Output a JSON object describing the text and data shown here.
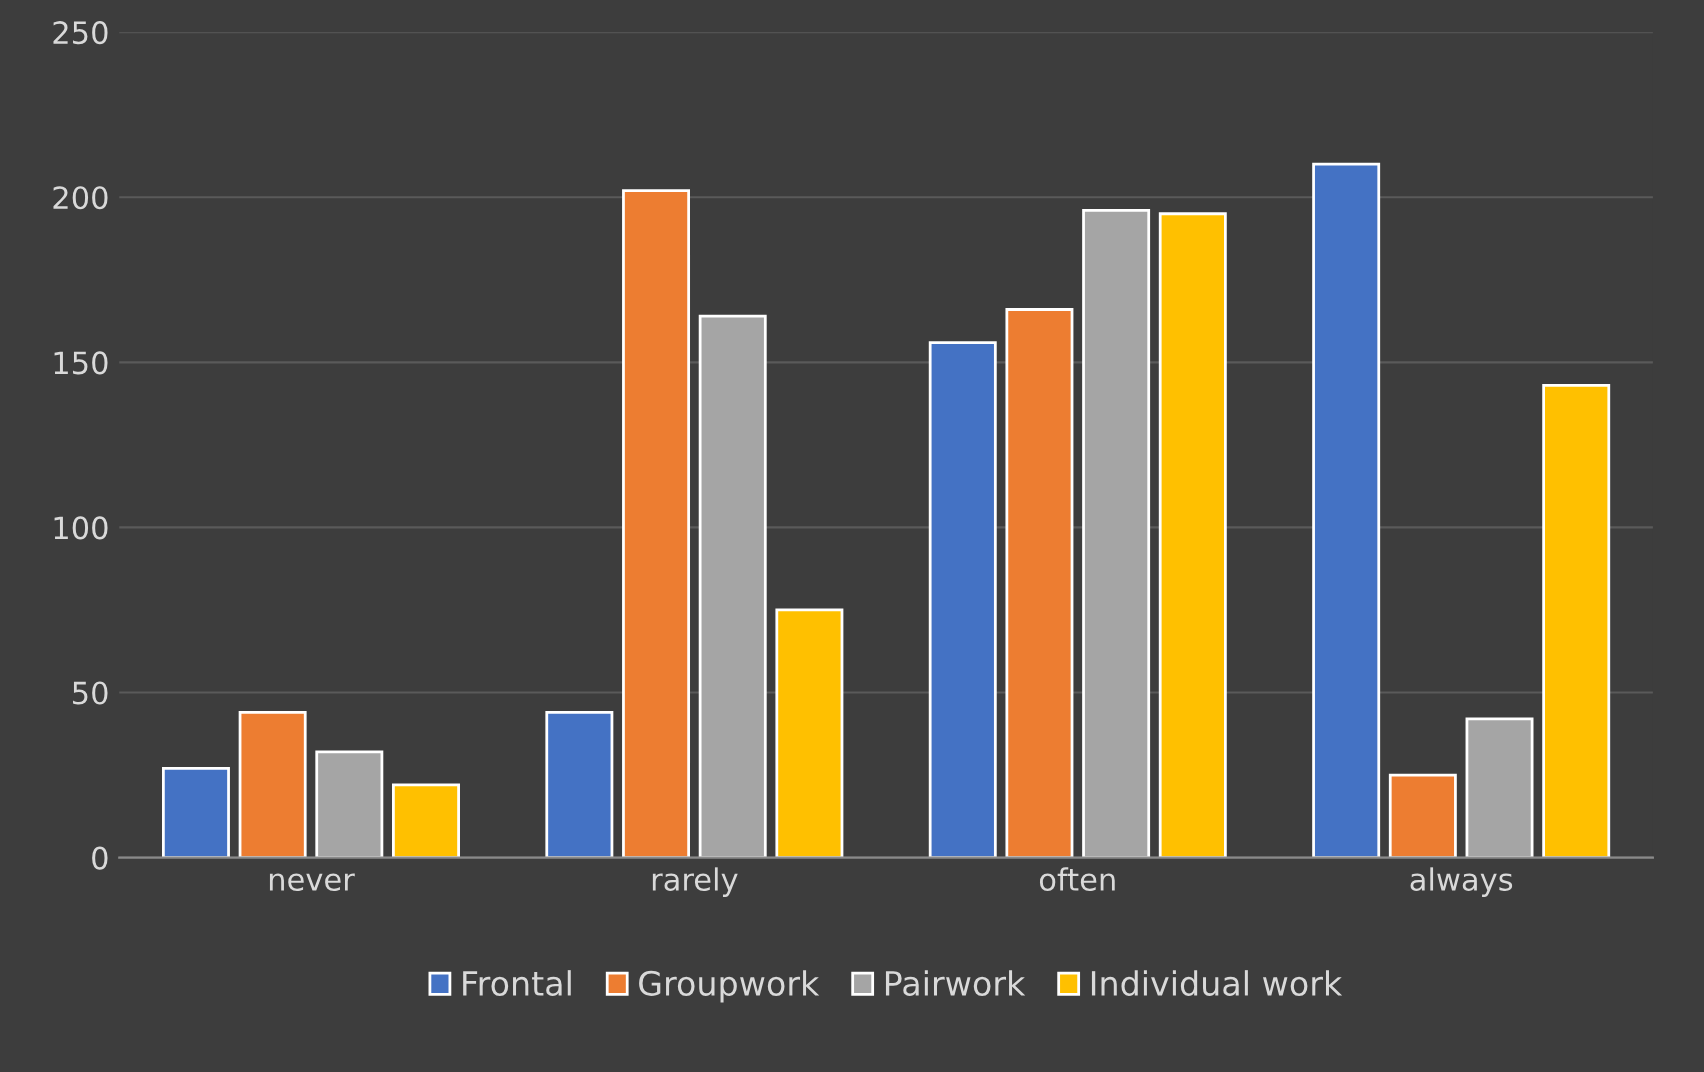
{
  "chart_data": {
    "type": "bar",
    "categories": [
      "never",
      "rarely",
      "often",
      "always"
    ],
    "series": [
      {
        "name": "Frontal",
        "color": "#4472c4",
        "values": [
          27,
          44,
          156,
          210
        ]
      },
      {
        "name": "Groupwork",
        "color": "#ed7d31",
        "values": [
          44,
          202,
          166,
          25
        ]
      },
      {
        "name": "Pairwork",
        "color": "#a5a5a5",
        "values": [
          32,
          164,
          196,
          42
        ]
      },
      {
        "name": "Individual work",
        "color": "#ffc000",
        "values": [
          22,
          75,
          195,
          143
        ]
      }
    ],
    "ylim": [
      0,
      250
    ],
    "yticks": [
      0,
      50,
      100,
      150,
      200,
      250
    ],
    "grid": "y",
    "legend": "bottom"
  }
}
